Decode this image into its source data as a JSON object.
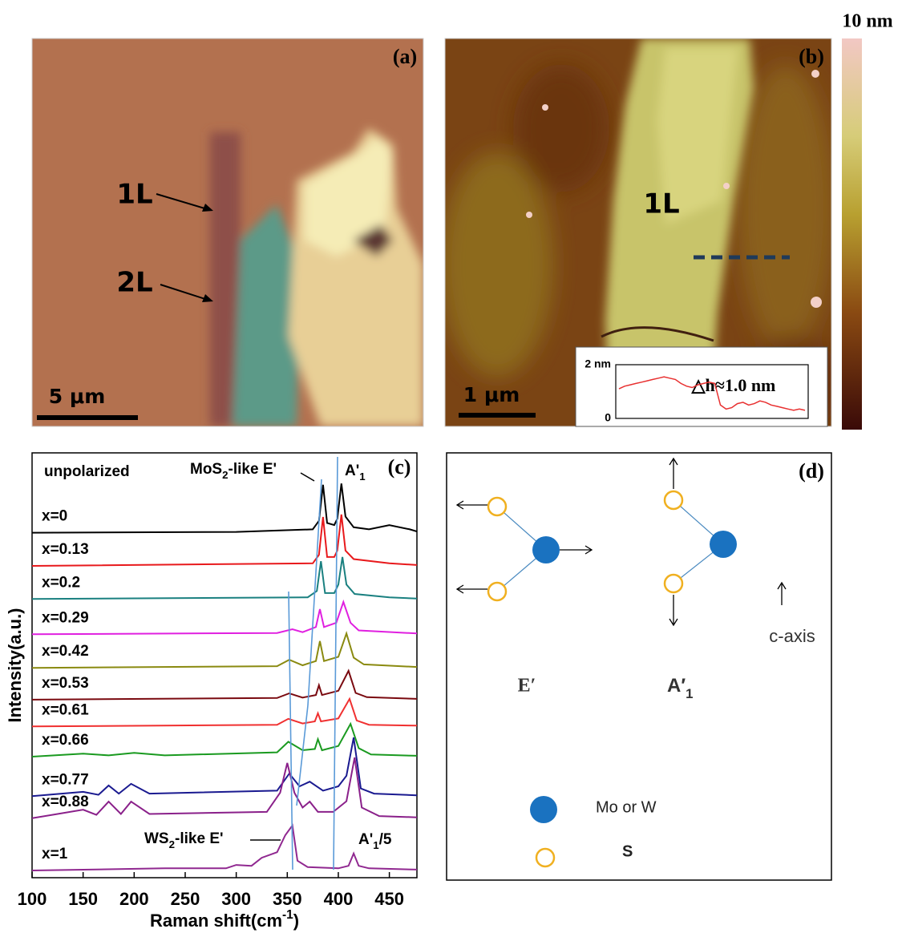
{
  "panels": {
    "a": {
      "letter": "(a)",
      "label_1l": "1L",
      "label_2l": "2L",
      "scale": "5 μm"
    },
    "b": {
      "letter": "(b)",
      "label_1l": "1L",
      "scale": "1 μm",
      "colorbar_max": "10 nm",
      "step": "△h≈1.0 nm"
    },
    "c": {
      "letter": "(c)",
      "mode": "unpolarized",
      "mos2_peak": [
        "MoS",
        "2",
        "-like E'"
      ],
      "a1_peak": [
        "A'",
        "1"
      ],
      "ws2_peak": [
        "WS",
        "2",
        "-like E'"
      ],
      "a1_scaled": [
        "A'",
        "1",
        "/5"
      ]
    },
    "d": {
      "letter": "(d)",
      "e_mode": "E′",
      "a_mode": [
        "A′",
        "1"
      ],
      "axis": "c-axis",
      "legend_metal": "Mo or W",
      "legend_s": "S"
    }
  },
  "chart_data": [
    {
      "type": "line",
      "x_label": [
        "Raman shift(cm",
        "-1",
        ")"
      ],
      "y_label": "Intensity(a.u.)",
      "xlim": [
        100,
        477
      ],
      "xticks": [
        100,
        150,
        200,
        250,
        300,
        350,
        400,
        450
      ],
      "ylim": [
        0,
        100
      ],
      "series": [
        {
          "name": "x=0",
          "color": "#000000",
          "x": [
            100,
            300,
            375,
            381,
            385,
            389,
            396,
            399,
            403,
            407,
            415,
            430,
            450,
            470,
            477
          ],
          "values": [
            81.2,
            81.4,
            82,
            84,
            92.5,
            83.5,
            83,
            84.5,
            92.8,
            85,
            82.5,
            82,
            83,
            82,
            81.5
          ]
        },
        {
          "name": "x=0.13",
          "color": "#e8191c",
          "x": [
            100,
            375,
            381,
            385,
            389,
            396,
            399,
            403,
            407,
            415,
            450,
            477
          ],
          "values": [
            73.4,
            74,
            76,
            84.9,
            75.5,
            75.5,
            77,
            85.5,
            77,
            75,
            74,
            73.6
          ]
        },
        {
          "name": "x=0.2",
          "color": "#1a8080",
          "x": [
            100,
            370,
            379,
            383,
            387,
            396,
            400,
            404,
            408,
            416,
            450,
            477
          ],
          "values": [
            65.6,
            66,
            67.5,
            74.5,
            67,
            67,
            69,
            75.5,
            69,
            66.8,
            66,
            65.7
          ]
        },
        {
          "name": "x=0.29",
          "color": "#e020e0",
          "x": [
            100,
            340,
            355,
            365,
            378,
            382,
            386,
            398,
            405,
            412,
            420,
            477
          ],
          "values": [
            57.3,
            57.6,
            58.5,
            57.8,
            59,
            63.2,
            59,
            60,
            64.9,
            60,
            58.2,
            57.5
          ]
        },
        {
          "name": "x=0.42",
          "color": "#8a8a10",
          "x": [
            100,
            340,
            352,
            365,
            378,
            382,
            386,
            400,
            408,
            415,
            425,
            477
          ],
          "values": [
            49.4,
            49.8,
            51.3,
            50,
            51,
            55.7,
            51,
            52,
            57.5,
            51.8,
            50.2,
            49.6
          ]
        },
        {
          "name": "x=0.53",
          "color": "#7a0a10",
          "x": [
            100,
            340,
            352,
            365,
            378,
            381,
            384,
            400,
            410,
            417,
            428,
            477
          ],
          "values": [
            41.9,
            42.3,
            43.4,
            42.4,
            43,
            45.3,
            43,
            44,
            48.7,
            43.5,
            42.5,
            42.1
          ]
        },
        {
          "name": "x=0.61",
          "color": "#f03030",
          "x": [
            100,
            340,
            351,
            365,
            377,
            380,
            383,
            400,
            411,
            418,
            430,
            477
          ],
          "values": [
            35.6,
            36,
            37.4,
            36.3,
            36.8,
            38.7,
            36.8,
            37.5,
            42.1,
            37,
            36,
            35.8
          ]
        },
        {
          "name": "x=0.66",
          "color": "#1a9a20",
          "x": [
            100,
            150,
            175,
            200,
            230,
            340,
            351,
            365,
            377,
            380,
            384,
            400,
            412,
            420,
            432,
            477
          ],
          "values": [
            28.5,
            29.2,
            28.8,
            29.4,
            28.8,
            29.5,
            32,
            30,
            30.3,
            32.6,
            30,
            31,
            36.2,
            30.5,
            29,
            28.7
          ]
        },
        {
          "name": "x=0.77",
          "color": "#1a1a90",
          "x": [
            100,
            150,
            165,
            175,
            185,
            197,
            215,
            340,
            352,
            362,
            372,
            385,
            400,
            408,
            415,
            422,
            435,
            477
          ],
          "values": [
            19.2,
            20.2,
            19.5,
            21.7,
            19.8,
            22.1,
            19.8,
            20.5,
            24.5,
            21.5,
            22.6,
            20.5,
            21.5,
            24,
            33,
            21,
            19.8,
            19.4
          ]
        },
        {
          "name": "x=0.88",
          "color": "#8a208a",
          "x": [
            100,
            150,
            163,
            175,
            187,
            197,
            215,
            330,
            343,
            350,
            357,
            365,
            372,
            380,
            395,
            408,
            416,
            423,
            440,
            477
          ],
          "values": [
            14,
            16,
            14.8,
            17.9,
            15,
            17.9,
            15,
            15.5,
            20,
            27,
            20,
            16.5,
            17.9,
            15.5,
            15.5,
            18,
            28.3,
            16.5,
            14.5,
            14.2
          ]
        },
        {
          "name": "x=1",
          "color": "#902890",
          "x": [
            100,
            230,
            290,
            300,
            315,
            325,
            340,
            348,
            355,
            360,
            370,
            400,
            410,
            415,
            420,
            430,
            477
          ],
          "values": [
            1.7,
            2.2,
            2.2,
            3,
            2.8,
            4.7,
            6,
            10,
            12.3,
            4,
            2.5,
            2.2,
            2.8,
            5.7,
            2.8,
            2.2,
            1.9
          ]
        }
      ]
    },
    {
      "type": "line",
      "color": "#e83030",
      "ylim": [
        0,
        2
      ],
      "yticks": [
        0,
        {
          "value": 2,
          "label": "2 nm"
        }
      ],
      "values": [
        1.1,
        1.2,
        1.25,
        1.3,
        1.35,
        1.4,
        1.45,
        1.5,
        1.55,
        1.5,
        1.45,
        1.3,
        1.2,
        1.15,
        1.25,
        1.3,
        1.35,
        1.3,
        0.5,
        0.35,
        0.4,
        0.55,
        0.6,
        0.5,
        0.55,
        0.65,
        0.6,
        0.5,
        0.45,
        0.4,
        0.35,
        0.3,
        0.35,
        0.3
      ]
    }
  ]
}
